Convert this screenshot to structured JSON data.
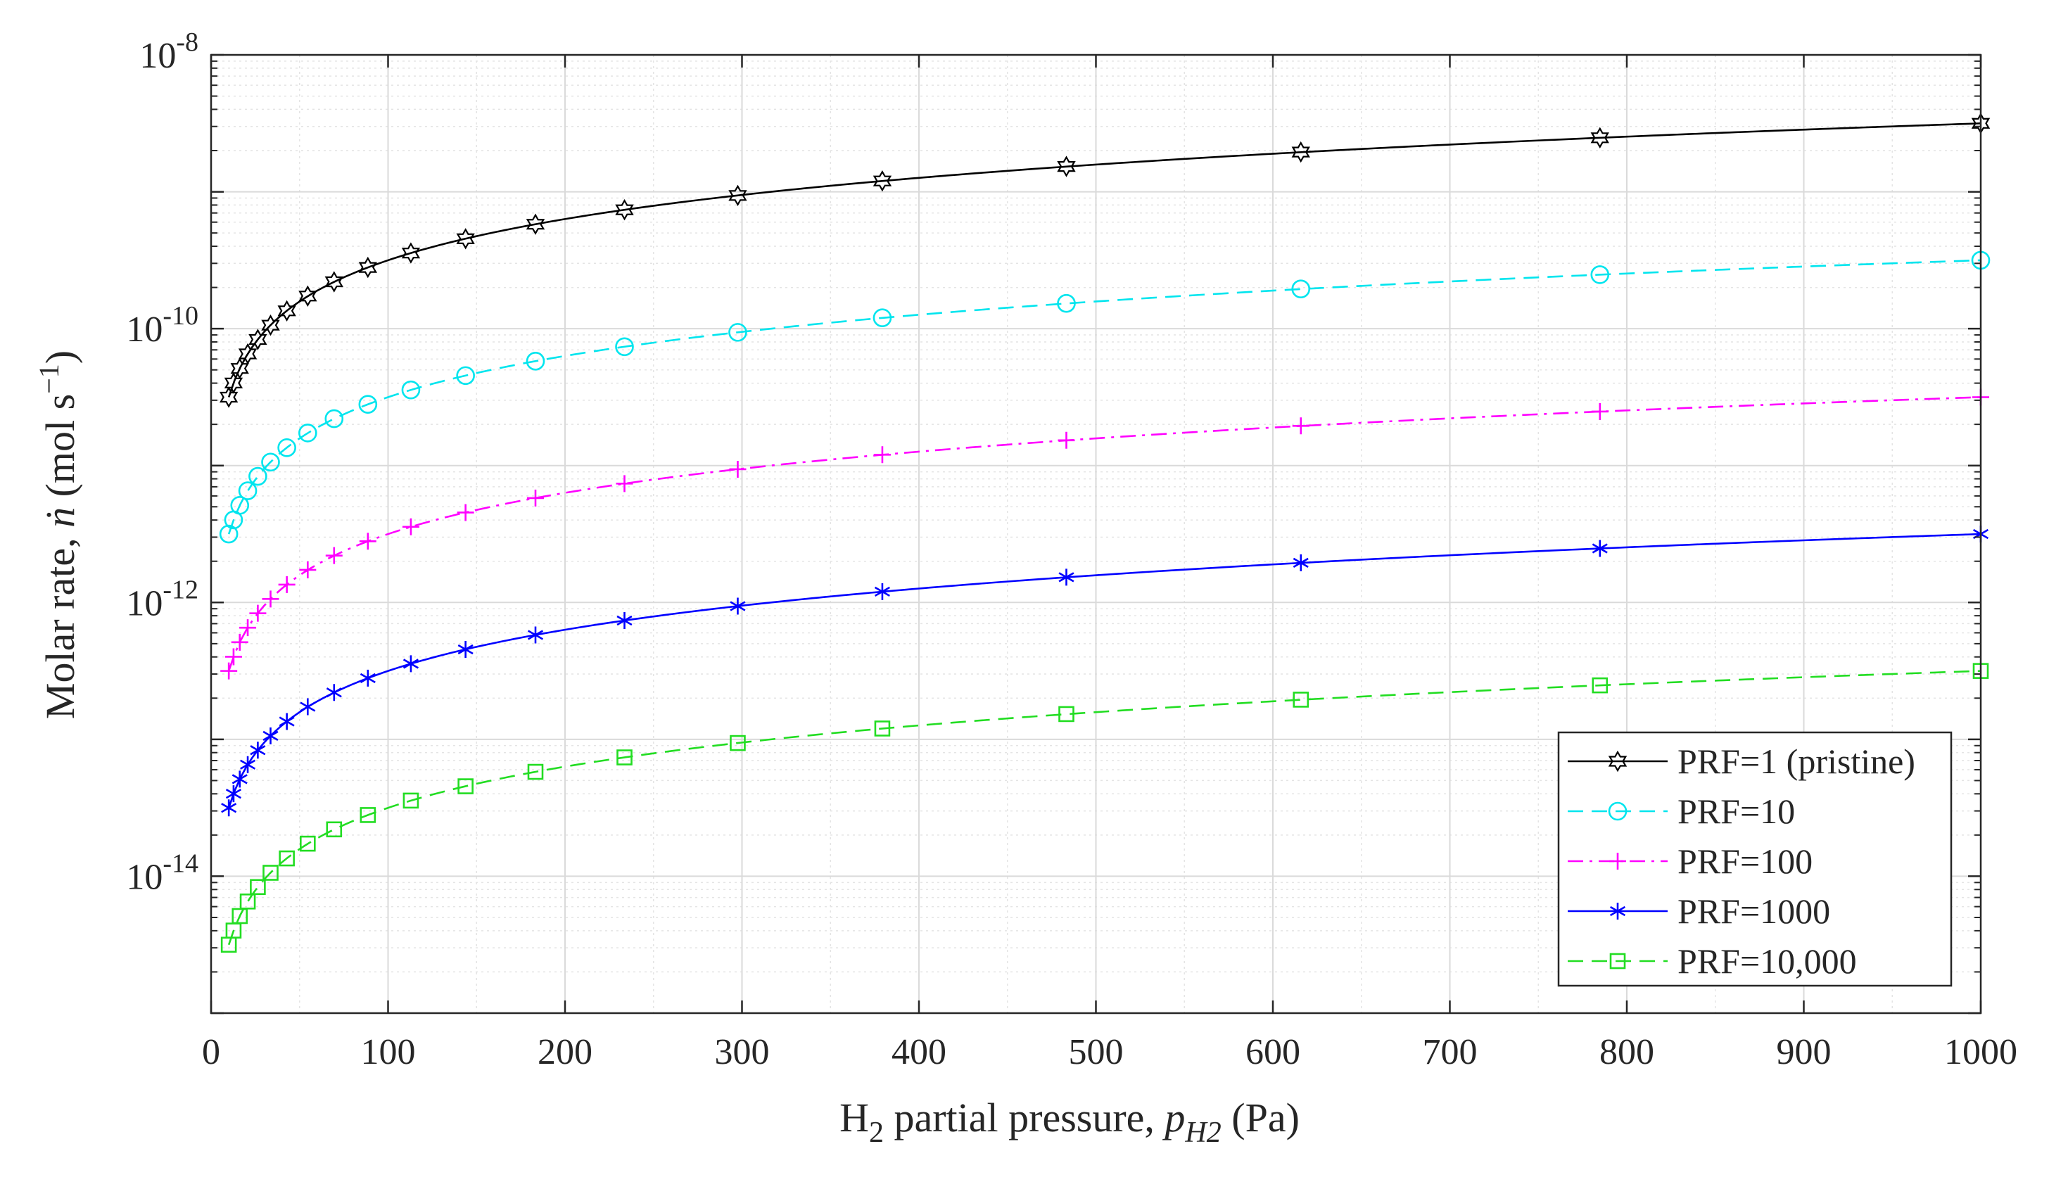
{
  "chart_data": {
    "type": "line",
    "title": "",
    "xlabel": {
      "prefix": "H",
      "sub": "2",
      "middle": " partial pressure, ",
      "var": "p",
      "var_sub": "H2",
      "suffix": " (Pa)"
    },
    "ylabel": {
      "prefix": "Molar rate, ",
      "var": "ṅ",
      "suffix": " (mol s",
      "exp": "−1",
      "close": ")"
    },
    "xlim": [
      0,
      1000
    ],
    "ylim": [
      1e-15,
      1e-08
    ],
    "yscale": "log",
    "grid": true,
    "minor_grid": true,
    "xticks": [
      0,
      100,
      200,
      300,
      400,
      500,
      600,
      700,
      800,
      900,
      1000
    ],
    "xtick_labels": [
      "0",
      "100",
      "200",
      "300",
      "400",
      "500",
      "600",
      "700",
      "800",
      "900",
      "1000"
    ],
    "yticks": [
      1e-14,
      1e-12,
      1e-10,
      1e-08
    ],
    "ytick_labels": [
      {
        "base": "10",
        "exp": "-14"
      },
      {
        "base": "10",
        "exp": "-12"
      },
      {
        "base": "10",
        "exp": "-10"
      },
      {
        "base": "10",
        "exp": "-8"
      }
    ],
    "legend_position": "bottom-right",
    "x": [
      10,
      12.7,
      16.2,
      20.7,
      26.4,
      33.6,
      42.8,
      54.6,
      69.5,
      88.6,
      112.9,
      143.8,
      183.3,
      233.6,
      297.6,
      379.3,
      483.3,
      615.8,
      784.8,
      1000
    ],
    "series": [
      {
        "name": "PRF=1 (pristine)",
        "coefficient": 3.16e-12,
        "color": "#000000",
        "dash": "none",
        "marker": "hexagram",
        "values": [
          3.16e-11,
          4.01e-11,
          5.12e-11,
          6.54e-11,
          8.34e-11,
          1.06e-10,
          1.35e-10,
          1.73e-10,
          2.2e-10,
          2.8e-10,
          3.57e-10,
          4.54e-10,
          5.79e-10,
          7.38e-10,
          9.4e-10,
          1.2e-09,
          1.53e-09,
          1.95e-09,
          2.48e-09,
          3.16e-09
        ]
      },
      {
        "name": "PRF=10",
        "coefficient": 3.16e-13,
        "color": "#00e5ee",
        "dash": "22 12",
        "marker": "circle",
        "values": [
          3.16e-12,
          4.01e-12,
          5.12e-12,
          6.54e-12,
          8.34e-12,
          1.06e-11,
          1.35e-11,
          1.73e-11,
          2.2e-11,
          2.8e-11,
          3.57e-11,
          4.54e-11,
          5.79e-11,
          7.38e-11,
          9.4e-11,
          1.2e-10,
          1.53e-10,
          1.95e-10,
          2.48e-10,
          3.16e-10
        ]
      },
      {
        "name": "PRF=100",
        "coefficient": 3.16e-14,
        "color": "#ff00ff",
        "dash": "22 9 4 9",
        "marker": "plus",
        "values": [
          3.16e-13,
          4.01e-13,
          5.12e-13,
          6.54e-13,
          8.34e-13,
          1.06e-12,
          1.35e-12,
          1.73e-12,
          2.2e-12,
          2.8e-12,
          3.57e-12,
          4.54e-12,
          5.79e-12,
          7.38e-12,
          9.4e-12,
          1.2e-11,
          1.53e-11,
          1.95e-11,
          2.48e-11,
          3.16e-11
        ]
      },
      {
        "name": "PRF=1000",
        "coefficient": 3.16e-15,
        "color": "#0000ff",
        "dash": "none",
        "marker": "asterisk",
        "values": [
          3.16e-14,
          4.01e-14,
          5.12e-14,
          6.54e-14,
          8.34e-14,
          1.06e-13,
          1.35e-13,
          1.73e-13,
          2.2e-13,
          2.8e-13,
          3.57e-13,
          4.54e-13,
          5.79e-13,
          7.38e-13,
          9.4e-13,
          1.2e-12,
          1.53e-12,
          1.95e-12,
          2.48e-12,
          3.16e-12
        ]
      },
      {
        "name": "PRF=10,000",
        "coefficient": 3.16e-16,
        "color": "#22dd22",
        "dash": "22 12",
        "marker": "square",
        "values": [
          3.16e-15,
          4.01e-15,
          5.12e-15,
          6.54e-15,
          8.34e-15,
          1.06e-14,
          1.35e-14,
          1.73e-14,
          2.2e-14,
          2.8e-14,
          3.57e-14,
          4.54e-14,
          5.79e-14,
          7.38e-14,
          9.4e-14,
          1.2e-13,
          1.53e-13,
          1.95e-13,
          2.48e-13,
          3.16e-13
        ]
      }
    ]
  }
}
